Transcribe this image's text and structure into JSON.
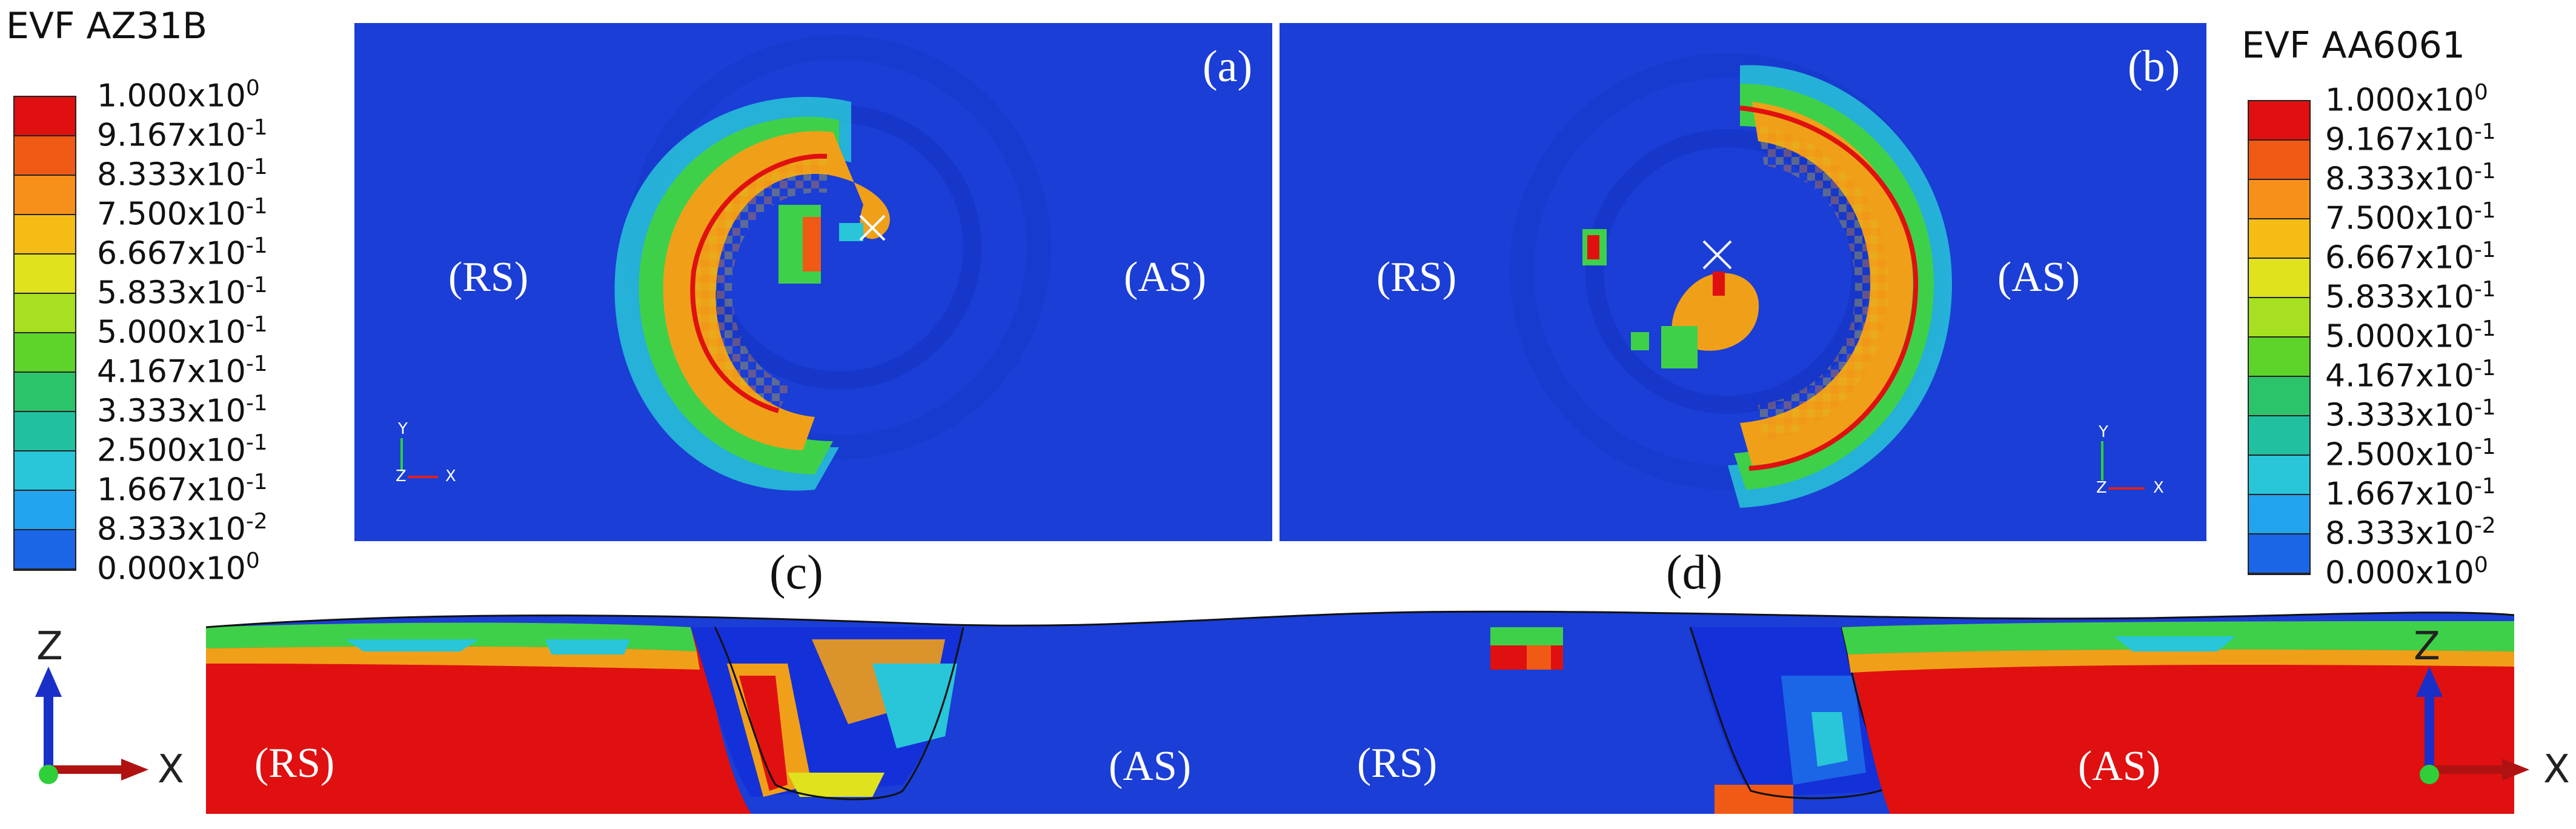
{
  "legend_left": {
    "title": "EVF AZ31B",
    "labels": [
      {
        "m": "1.000x10",
        "e": "0"
      },
      {
        "m": "9.167x10",
        "e": "-1"
      },
      {
        "m": "8.333x10",
        "e": "-1"
      },
      {
        "m": "7.500x10",
        "e": "-1"
      },
      {
        "m": "6.667x10",
        "e": "-1"
      },
      {
        "m": "5.833x10",
        "e": "-1"
      },
      {
        "m": "5.000x10",
        "e": "-1"
      },
      {
        "m": "4.167x10",
        "e": "-1"
      },
      {
        "m": "3.333x10",
        "e": "-1"
      },
      {
        "m": "2.500x10",
        "e": "-1"
      },
      {
        "m": "1.667x10",
        "e": "-1"
      },
      {
        "m": "8.333x10",
        "e": "-2"
      },
      {
        "m": "0.000x10",
        "e": "0"
      }
    ]
  },
  "legend_right": {
    "title": "EVF AA6061",
    "labels": [
      {
        "m": "1.000x10",
        "e": "0"
      },
      {
        "m": "9.167x10",
        "e": "-1"
      },
      {
        "m": "8.333x10",
        "e": "-1"
      },
      {
        "m": "7.500x10",
        "e": "-1"
      },
      {
        "m": "6.667x10",
        "e": "-1"
      },
      {
        "m": "5.833x10",
        "e": "-1"
      },
      {
        "m": "5.000x10",
        "e": "-1"
      },
      {
        "m": "4.167x10",
        "e": "-1"
      },
      {
        "m": "3.333x10",
        "e": "-1"
      },
      {
        "m": "2.500x10",
        "e": "-1"
      },
      {
        "m": "1.667x10",
        "e": "-1"
      },
      {
        "m": "8.333x10",
        "e": "-2"
      },
      {
        "m": "0.000x10",
        "e": "0"
      }
    ]
  },
  "colormap": [
    "#e01010",
    "#f05a14",
    "#f7901a",
    "#f5bd14",
    "#dfe21c",
    "#a6e020",
    "#5ed32a",
    "#2cc46a",
    "#20c0a0",
    "#28c6d8",
    "#22a4ee",
    "#1a66e6",
    "#1430d8"
  ],
  "panels": {
    "a": {
      "label": "(a)",
      "rs": "(RS)",
      "as": "(AS)"
    },
    "b": {
      "label": "(b)",
      "rs": "(RS)",
      "as": "(AS)"
    }
  },
  "captions": {
    "c": "(c)",
    "d": "(d)"
  },
  "bottom": {
    "rs_left": "(RS)",
    "as_mid": "(AS)",
    "rs_mid": "(RS)",
    "as_right": "(AS)"
  },
  "triad": {
    "z": "Z",
    "x": "X"
  },
  "mini_triad": {
    "y": "Y",
    "z": "Z",
    "x": "X"
  }
}
